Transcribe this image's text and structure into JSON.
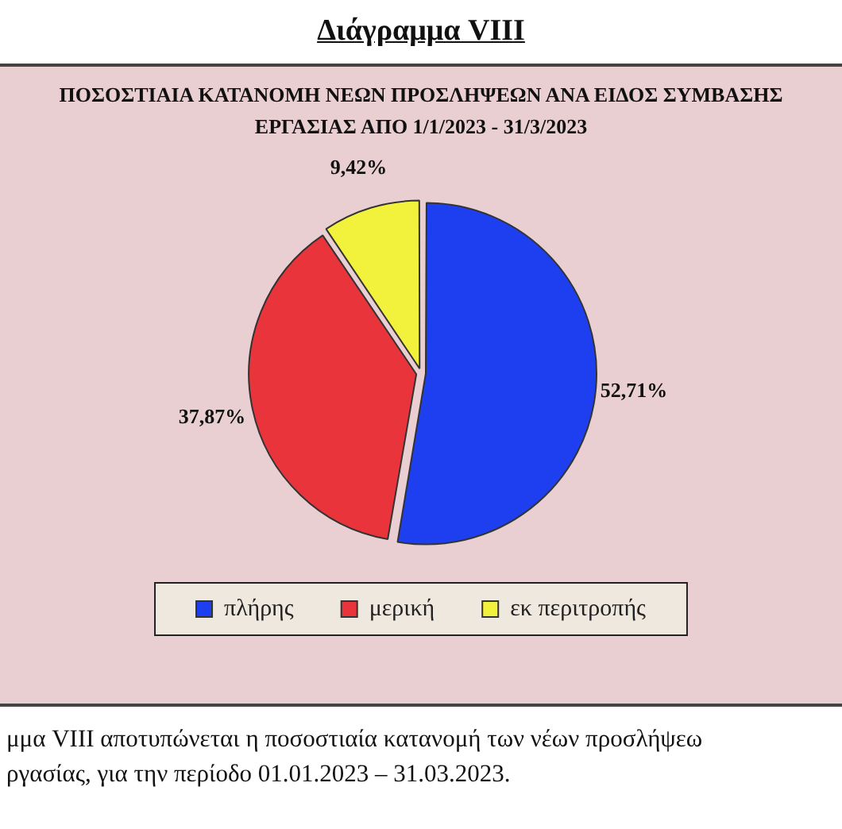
{
  "chart_data": {
    "type": "pie",
    "title": "Διάγραμμα VIII",
    "subtitle": "ΠΟΣΟΣΤΙΑΙΑ ΚΑΤΑΝΟΜΗ ΝΕΩΝ ΠΡΟΣΛΗΨΕΩΝ ΑΝΑ ΕΙΔΟΣ ΣΥΜΒΑΣΗΣ ΕΡΓΑΣΙΑΣ ΑΠΟ 1/1/2023 - 31/3/2023",
    "categories": [
      "πλήρης",
      "μερική",
      "εκ περιτροπής"
    ],
    "values": [
      52.71,
      37.87,
      9.42
    ],
    "colors": [
      "#1e3ff0",
      "#e8343a",
      "#f2f23c"
    ],
    "value_labels": [
      "52,71%",
      "37,87%",
      "9,42%"
    ],
    "legend": "bottom",
    "annotations": [
      "μμα VIII αποτυπώνεται η ποσοστιαία κατανομή των νέων προσλήψεω",
      "ργασίας, για την περίοδο 01.01.2023 – 31.03.2023."
    ]
  }
}
